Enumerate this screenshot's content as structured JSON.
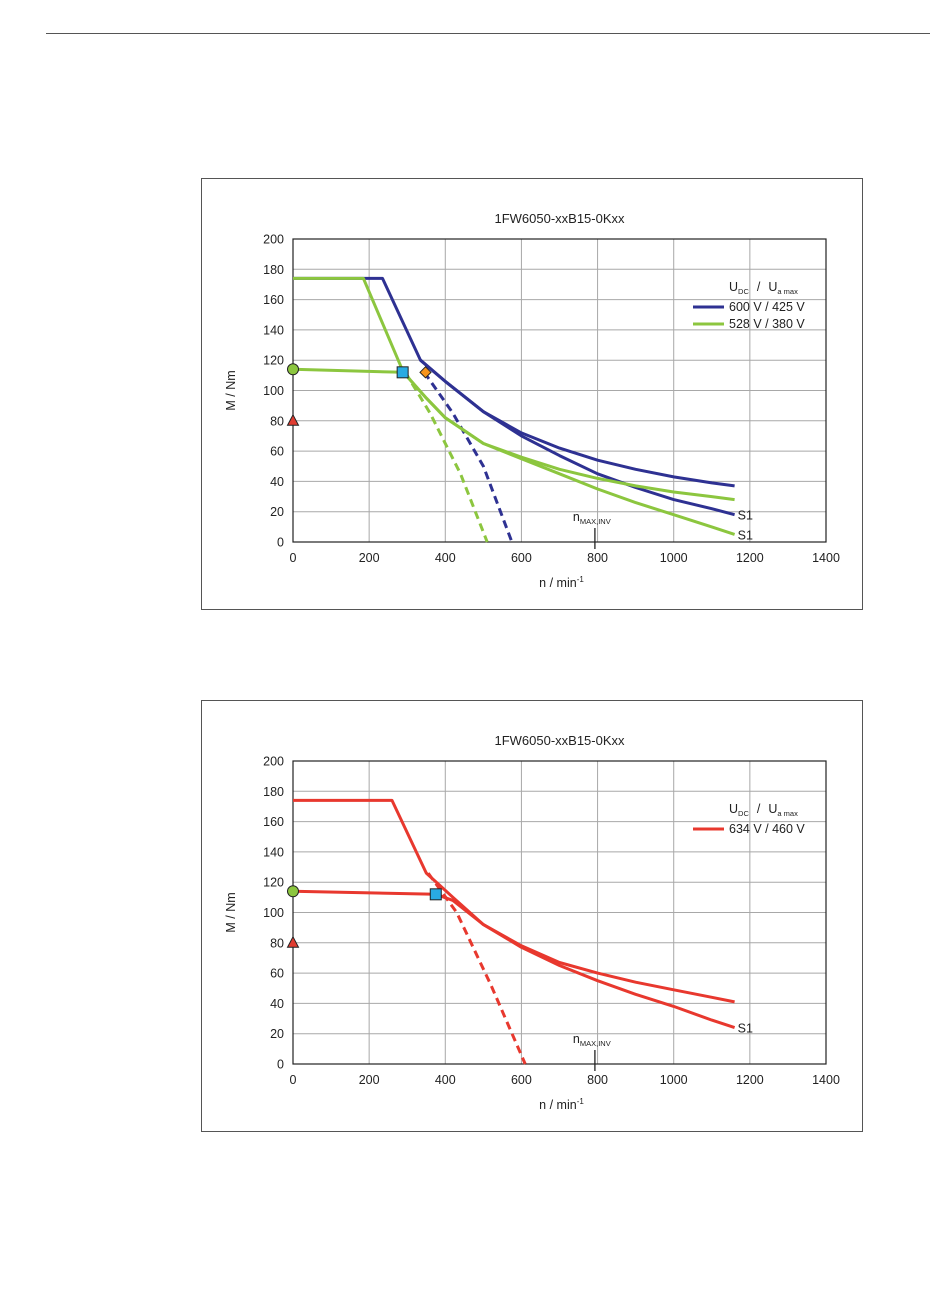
{
  "chart_data": [
    {
      "type": "line",
      "title": "1FW6050-xxB15-0Kxx",
      "xlabel": "n / min",
      "xlabel_sup": "-1",
      "ylabel": "M / Nm",
      "xlim": [
        0,
        1400
      ],
      "ylim": [
        0,
        200
      ],
      "xticks": [
        0,
        200,
        400,
        600,
        800,
        1000,
        1200,
        1400
      ],
      "yticks": [
        0,
        20,
        40,
        60,
        80,
        100,
        120,
        140,
        160,
        180,
        200
      ],
      "grid": true,
      "legend": {
        "placement": "right",
        "title": {
          "u": "U",
          "dc": "DC",
          "sep": "/",
          "ua": "U",
          "amax": "a max"
        },
        "entries": [
          "600 V / 425 V",
          "528 V / 380 V"
        ]
      },
      "annotation": {
        "main": "n",
        "sub": "MAX,INV",
        "x": 793
      },
      "s1_label": "S1",
      "series": [
        {
          "name": "600 V / 425 V",
          "color": "#2e3192",
          "lines": [
            {
              "style": "solid",
              "points": [
                [
                  0,
                  174
                ],
                [
                  235,
                  174
                ],
                [
                  335,
                  120
                ],
                [
                  400,
                  106
                ],
                [
                  500,
                  86
                ],
                [
                  600,
                  72
                ],
                [
                  700,
                  62
                ],
                [
                  800,
                  54
                ],
                [
                  900,
                  48
                ],
                [
                  1000,
                  43
                ],
                [
                  1100,
                  39
                ],
                [
                  1160,
                  37
                ]
              ]
            },
            {
              "style": "solid",
              "points": [
                [
                  335,
                  120
                ],
                [
                  400,
                  106
                ],
                [
                  500,
                  86
                ],
                [
                  600,
                  70
                ],
                [
                  700,
                  57
                ],
                [
                  800,
                  45
                ],
                [
                  900,
                  36
                ],
                [
                  1000,
                  28
                ],
                [
                  1100,
                  22
                ],
                [
                  1160,
                  18
                ]
              ]
            },
            {
              "style": "dashed",
              "points": [
                [
                  345,
                  112
                ],
                [
                  420,
                  85
                ],
                [
                  500,
                  50
                ],
                [
                  575,
                  0
                ]
              ]
            }
          ],
          "end_label_y": 18
        },
        {
          "name": "528 V / 380 V",
          "color": "#8cc63f",
          "lines": [
            {
              "style": "solid",
              "points": [
                [
                  0,
                  174
                ],
                [
                  185,
                  174
                ],
                [
                  290,
                  112
                ],
                [
                  350,
                  95
                ],
                [
                  400,
                  82
                ],
                [
                  500,
                  65
                ],
                [
                  600,
                  56
                ],
                [
                  700,
                  48
                ],
                [
                  800,
                  42
                ],
                [
                  900,
                  37
                ],
                [
                  1000,
                  33
                ],
                [
                  1100,
                  30
                ],
                [
                  1160,
                  28
                ]
              ]
            },
            {
              "style": "solid",
              "points": [
                [
                  0,
                  114
                ],
                [
                  290,
                  112
                ],
                [
                  350,
                  95
                ],
                [
                  400,
                  82
                ],
                [
                  500,
                  65
                ],
                [
                  600,
                  55
                ],
                [
                  700,
                  45
                ],
                [
                  800,
                  35
                ],
                [
                  900,
                  26
                ],
                [
                  1000,
                  18
                ],
                [
                  1100,
                  10
                ],
                [
                  1160,
                  5
                ]
              ]
            },
            {
              "style": "dashed",
              "points": [
                [
                  295,
                  112
                ],
                [
                  360,
                  85
                ],
                [
                  440,
                  45
                ],
                [
                  510,
                  0
                ]
              ]
            }
          ],
          "end_label_y": 5
        }
      ],
      "markers": [
        {
          "shape": "circle",
          "x": 0,
          "y": 114,
          "fill": "#8cc63f"
        },
        {
          "shape": "triangle",
          "x": 0,
          "y": 80,
          "fill": "#e03c31"
        },
        {
          "shape": "square",
          "x": 288,
          "y": 112,
          "fill": "#29abe2"
        },
        {
          "shape": "diamond",
          "x": 348,
          "y": 112,
          "fill": "#f7941d"
        }
      ]
    },
    {
      "type": "line",
      "title": "1FW6050-xxB15-0Kxx",
      "xlabel": "n / min",
      "xlabel_sup": "-1",
      "ylabel": "M / Nm",
      "xlim": [
        0,
        1400
      ],
      "ylim": [
        0,
        200
      ],
      "xticks": [
        0,
        200,
        400,
        600,
        800,
        1000,
        1200,
        1400
      ],
      "yticks": [
        0,
        20,
        40,
        60,
        80,
        100,
        120,
        140,
        160,
        180,
        200
      ],
      "grid": true,
      "legend": {
        "placement": "right",
        "title": {
          "u": "U",
          "dc": "DC",
          "sep": "/",
          "ua": "U",
          "amax": "a max"
        },
        "entries": [
          "634 V / 460 V"
        ]
      },
      "annotation": {
        "main": "n",
        "sub": "MAX,INV",
        "x": 793
      },
      "s1_label": "S1",
      "series": [
        {
          "name": "634 V / 460 V",
          "color": "#e8382e",
          "lines": [
            {
              "style": "solid",
              "points": [
                [
                  0,
                  174
                ],
                [
                  260,
                  174
                ],
                [
                  350,
                  126
                ],
                [
                  420,
                  110
                ],
                [
                  500,
                  92
                ],
                [
                  600,
                  78
                ],
                [
                  700,
                  67
                ],
                [
                  800,
                  60
                ],
                [
                  900,
                  54
                ],
                [
                  1000,
                  49
                ],
                [
                  1100,
                  44
                ],
                [
                  1160,
                  41
                ]
              ]
            },
            {
              "style": "solid",
              "points": [
                [
                  0,
                  114
                ],
                [
                  375,
                  112
                ],
                [
                  420,
                  108
                ],
                [
                  500,
                  92
                ],
                [
                  600,
                  77
                ],
                [
                  700,
                  65
                ],
                [
                  800,
                  55
                ],
                [
                  900,
                  46
                ],
                [
                  1000,
                  38
                ],
                [
                  1100,
                  29
                ],
                [
                  1160,
                  24
                ]
              ]
            },
            {
              "style": "dashed",
              "points": [
                [
                  355,
                  126
                ],
                [
                  430,
                  100
                ],
                [
                  520,
                  52
                ],
                [
                  610,
                  0
                ]
              ]
            }
          ],
          "end_label_y": 24
        }
      ],
      "markers": [
        {
          "shape": "circle",
          "x": 0,
          "y": 114,
          "fill": "#8cc63f"
        },
        {
          "shape": "triangle",
          "x": 0,
          "y": 80,
          "fill": "#e03c31"
        },
        {
          "shape": "square",
          "x": 375,
          "y": 112,
          "fill": "#29abe2"
        }
      ]
    }
  ]
}
